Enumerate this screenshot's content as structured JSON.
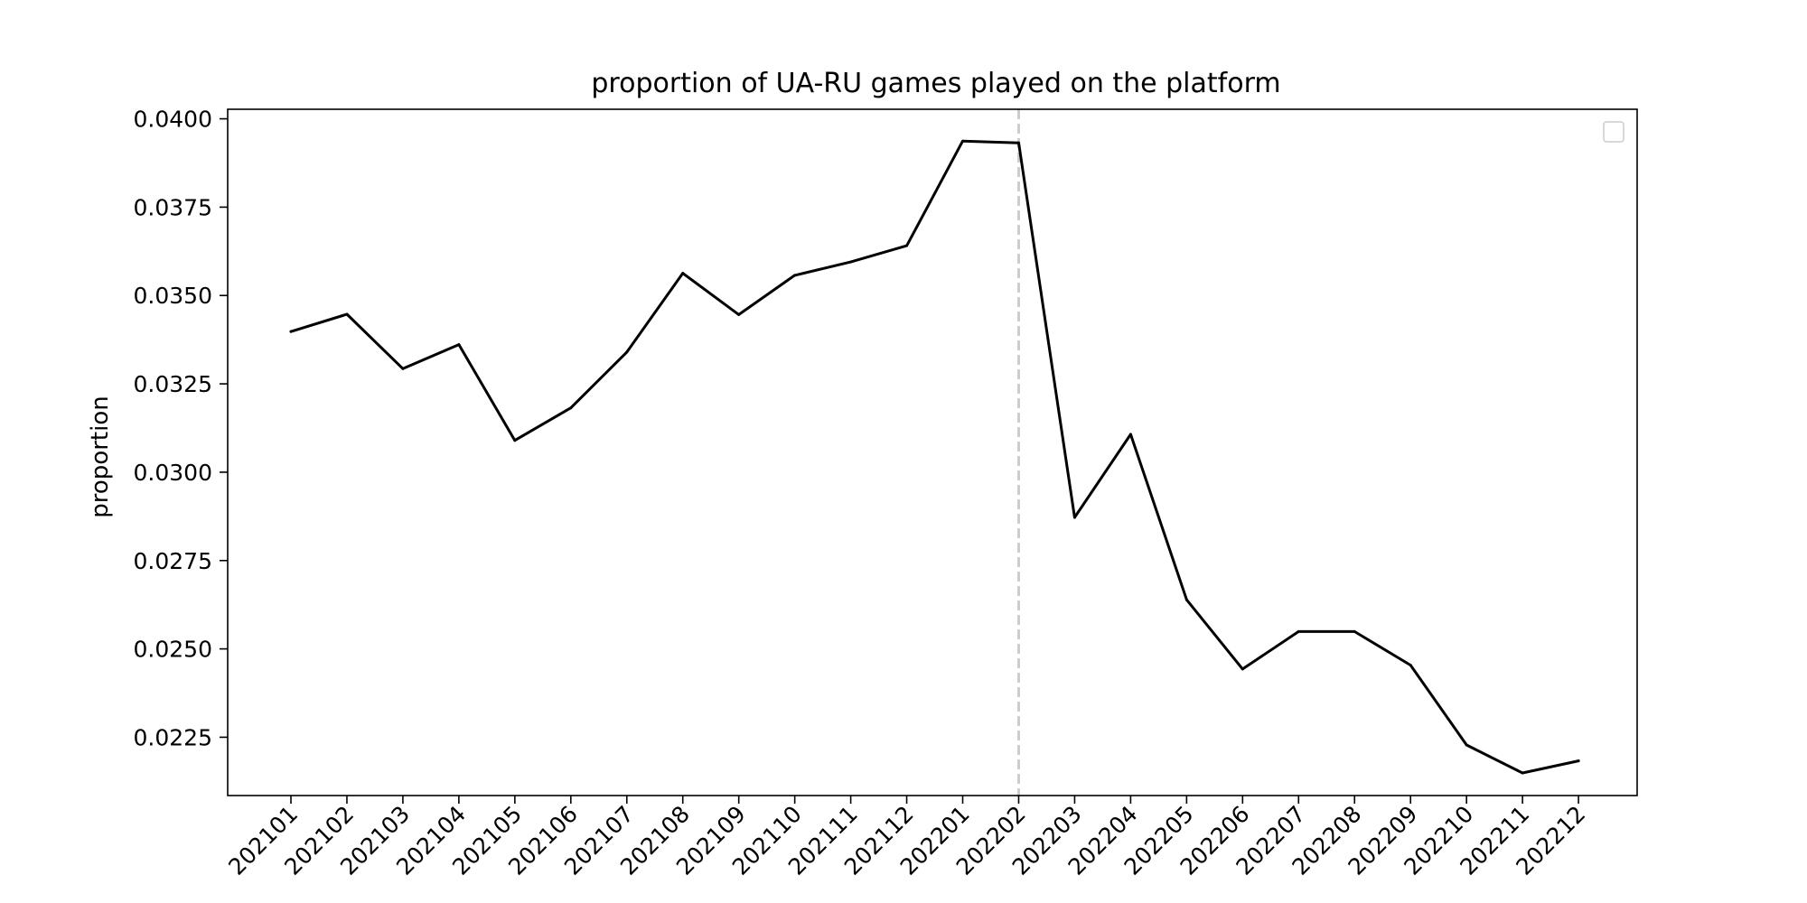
{
  "chart_data": {
    "type": "line",
    "title": "proportion of UA-RU games played on the platform",
    "xlabel": "",
    "ylabel": "proportion",
    "categories": [
      "202101",
      "202102",
      "202103",
      "202104",
      "202105",
      "202106",
      "202107",
      "202108",
      "202109",
      "202110",
      "202111",
      "202112",
      "202201",
      "202202",
      "202203",
      "202204",
      "202205",
      "202206",
      "202207",
      "202208",
      "202209",
      "202210",
      "202211",
      "202212"
    ],
    "series": [
      {
        "values": [
          0.03398,
          0.03447,
          0.03293,
          0.03361,
          0.0309,
          0.03182,
          0.0334,
          0.03563,
          0.03446,
          0.03557,
          0.03595,
          0.03641,
          0.03937,
          0.03932,
          0.02872,
          0.03107,
          0.02639,
          0.02443,
          0.02549,
          0.02549,
          0.02454,
          0.02228,
          0.02149,
          0.02183
        ]
      }
    ],
    "vline": {
      "x": "202202",
      "style": "dashed",
      "color": "#cccccc"
    },
    "yticks": [
      "0.0225",
      "0.0250",
      "0.0275",
      "0.0300",
      "0.0325",
      "0.0350",
      "0.0375",
      "0.0400"
    ],
    "ylim": [
      0.02085,
      0.04027
    ],
    "legend": {
      "location": "upper right",
      "entries": []
    },
    "grid": false,
    "colors": {
      "line": "#000000",
      "vline": "#cccccc",
      "axes": "#000000"
    }
  }
}
